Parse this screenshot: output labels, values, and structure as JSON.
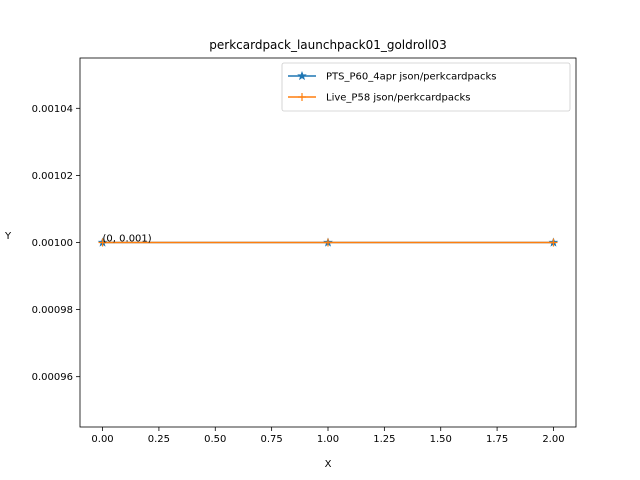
{
  "chart_data": {
    "type": "line",
    "title": "perkcardpack_launchpack01_goldroll03",
    "xlabel": "X",
    "ylabel": "Y",
    "xlim": [
      -0.1,
      2.1
    ],
    "ylim": [
      0.000945,
      0.001055
    ],
    "xticks": [
      "0.00",
      "0.25",
      "0.50",
      "0.75",
      "1.00",
      "1.25",
      "1.50",
      "1.75",
      "2.00"
    ],
    "yticks": [
      "0.00096",
      "0.00098",
      "0.00100",
      "0.00102",
      "0.00104"
    ],
    "grid": false,
    "legend_position": "top-right",
    "series": [
      {
        "name": "PTS_P60_4apr json/perkcardpacks",
        "color": "#1f77b4",
        "marker": "star",
        "x": [
          0,
          1,
          2
        ],
        "y": [
          0.001,
          0.001,
          0.001
        ]
      },
      {
        "name": "Live_P58 json/perkcardpacks",
        "color": "#ff7f0e",
        "marker": "plus",
        "x": [
          0,
          1,
          2
        ],
        "y": [
          0.001,
          0.001,
          0.001
        ]
      }
    ],
    "annotations": [
      {
        "text": "(0, 0.001)",
        "x": 0,
        "y": 0.001
      }
    ]
  }
}
